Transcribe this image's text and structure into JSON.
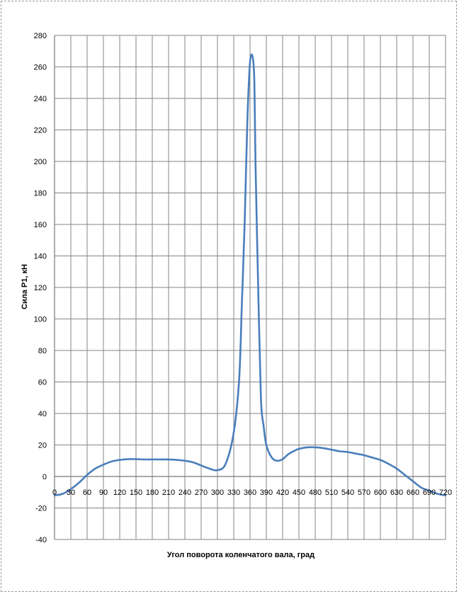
{
  "chart_data": {
    "type": "line",
    "xlabel": "Угол поворота коленчатого вала, град",
    "ylabel": "Сила P1, кН",
    "xlim": [
      0,
      720
    ],
    "ylim": [
      -40,
      280
    ],
    "x_ticks": [
      "0",
      "30",
      "60",
      "90",
      "120",
      "150",
      "180",
      "210",
      "240",
      "270",
      "300",
      "330",
      "360",
      "390",
      "420",
      "450",
      "480",
      "510",
      "540",
      "570",
      "600",
      "630",
      "660",
      "690",
      "720"
    ],
    "y_ticks": [
      "-40",
      "-20",
      "0",
      "20",
      "40",
      "60",
      "80",
      "100",
      "120",
      "140",
      "160",
      "180",
      "200",
      "220",
      "240",
      "260",
      "280"
    ],
    "grid": true,
    "line_color": "#4a7ebb",
    "series": [
      {
        "x": [
          0,
          15,
          30,
          45,
          60,
          75,
          90,
          105,
          120,
          135,
          150,
          165,
          180,
          195,
          210,
          225,
          240,
          255,
          270,
          285,
          300,
          315,
          330,
          340,
          345,
          350,
          355,
          360,
          365,
          368,
          370,
          375,
          380,
          385,
          390,
          400,
          410,
          420,
          430,
          440,
          450,
          465,
          480,
          495,
          510,
          525,
          540,
          555,
          570,
          585,
          600,
          615,
          630,
          645,
          660,
          675,
          690,
          705,
          720
        ],
        "y": [
          -12,
          -11,
          -8,
          -4,
          1,
          5,
          7.5,
          9.5,
          10.5,
          11,
          11,
          10.8,
          10.8,
          10.8,
          10.8,
          10.5,
          10,
          9,
          7,
          5,
          4,
          8,
          28,
          62,
          110,
          160,
          225,
          263,
          266,
          250,
          200,
          120,
          50,
          32,
          20,
          12,
          10,
          11,
          14,
          16,
          17.5,
          18.5,
          18.5,
          18,
          17,
          16,
          15.5,
          14.5,
          13.5,
          12,
          10.5,
          8,
          5,
          1,
          -3,
          -7,
          -9,
          -11,
          -12
        ]
      }
    ]
  }
}
